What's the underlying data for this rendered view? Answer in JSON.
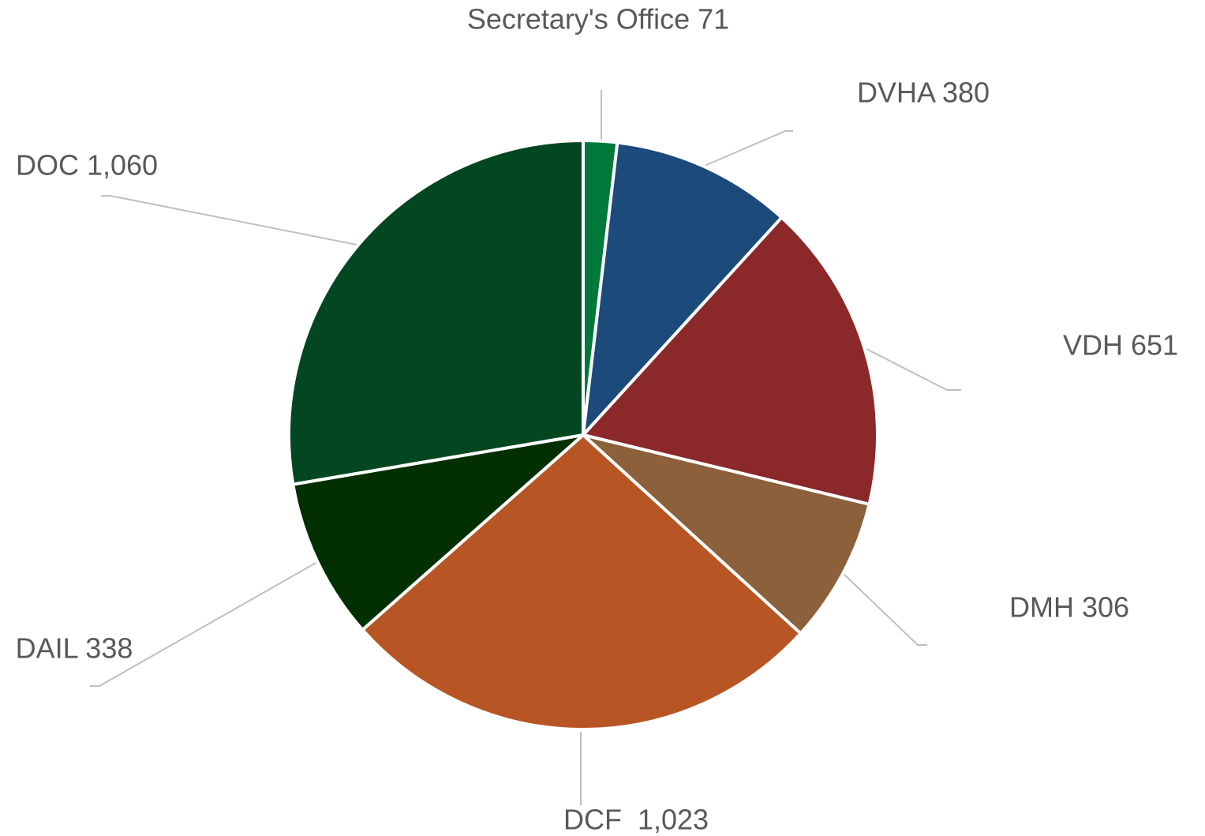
{
  "chart_data": {
    "type": "pie",
    "title": "",
    "start_angle_deg": 0,
    "direction": "clockwise",
    "slices": [
      {
        "category": "Secretary's Office",
        "value": 71,
        "label": "Secretary's Office 71",
        "color": "#00793a"
      },
      {
        "category": "DVHA",
        "value": 380,
        "label": "DVHA 380",
        "color": "#1b4a7b"
      },
      {
        "category": "VDH",
        "value": 651,
        "label": "VDH 651",
        "color": "#8b282a"
      },
      {
        "category": "DMH",
        "value": 306,
        "label": "DMH 306",
        "color": "#8b603b"
      },
      {
        "category": "DCF",
        "value": 1023,
        "label": "DCF  1,023",
        "color": "#b85524"
      },
      {
        "category": "DAIL",
        "value": 338,
        "label": "DAIL 338",
        "color": "#023001"
      },
      {
        "category": "DOC",
        "value": 1060,
        "label": "DOC 1,060",
        "color": "#024720"
      }
    ]
  }
}
